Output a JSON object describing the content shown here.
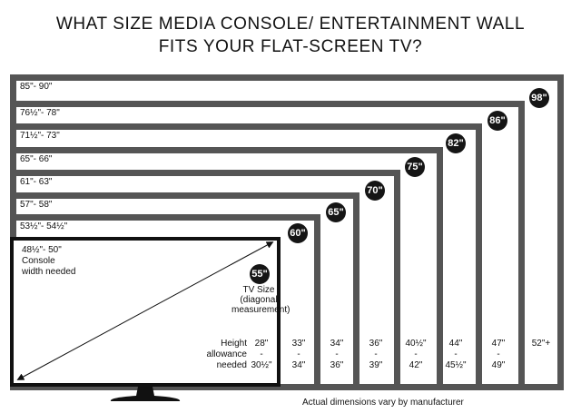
{
  "title": {
    "line1": "WHAT SIZE MEDIA CONSOLE/ ENTERTAINMENT WALL",
    "line2": "FITS YOUR FLAT-SCREEN TV?"
  },
  "tvs": [
    {
      "size": "98\"",
      "console_width": "85\"- 90\"",
      "height_top": "52\"+",
      "height_sep": "",
      "height_bottom": ""
    },
    {
      "size": "86\"",
      "console_width": "76½\"- 78\"",
      "height_top": "47\"",
      "height_sep": "-",
      "height_bottom": "49\""
    },
    {
      "size": "82\"",
      "console_width": "71½\"- 73\"",
      "height_top": "44\"",
      "height_sep": "-",
      "height_bottom": "45½\""
    },
    {
      "size": "75\"",
      "console_width": "65\"- 66\"",
      "height_top": "40½\"",
      "height_sep": "-",
      "height_bottom": "42\""
    },
    {
      "size": "70\"",
      "console_width": "61\"- 63\"",
      "height_top": "36\"",
      "height_sep": "-",
      "height_bottom": "39\""
    },
    {
      "size": "65\"",
      "console_width": "57\"- 58\"",
      "height_top": "34\"",
      "height_sep": "-",
      "height_bottom": "36\""
    },
    {
      "size": "60\"",
      "console_width": "53½\"- 54½\"",
      "height_top": "33\"",
      "height_sep": "-",
      "height_bottom": "34\""
    },
    {
      "size": "55\"",
      "console_width": "48½\"- 50\"",
      "height_top": "28\"",
      "height_sep": "-",
      "height_bottom": "30½\""
    }
  ],
  "labels": {
    "console_line1": "Console",
    "console_line2": "width needed",
    "tv_size_line1": "TV Size",
    "tv_size_line2": "(diagonal",
    "tv_size_line3": "measurement)",
    "height_line1": "Height",
    "height_line2": "allowance",
    "height_line3": "needed",
    "note": "Actual dimensions vary by manufacturer"
  },
  "colors": {
    "frame": "#555555",
    "front_frame": "#111111",
    "badge": "#151515"
  }
}
